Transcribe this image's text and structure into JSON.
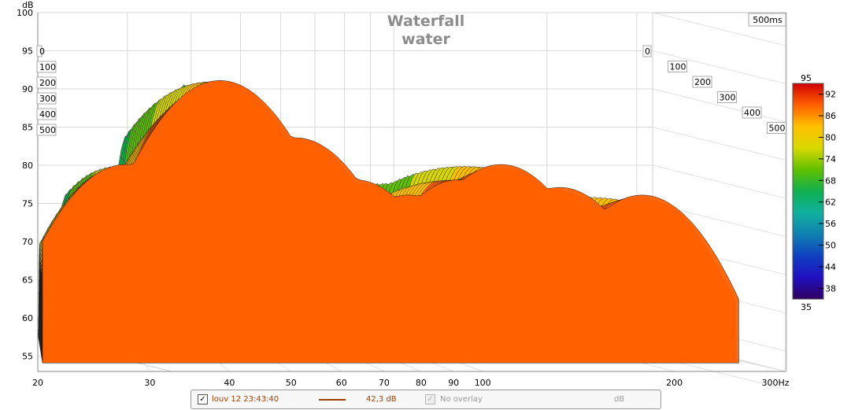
{
  "chart_data": {
    "type": "area",
    "title": "Waterfall",
    "subtitle": "water",
    "ylabel": "dB",
    "xlabel": "Hz",
    "x_ticks": [
      "20",
      "30",
      "40",
      "50",
      "60",
      "70",
      "80",
      "90",
      "100",
      "200",
      "300Hz"
    ],
    "x_tick_values": [
      20,
      30,
      40,
      50,
      60,
      70,
      80,
      90,
      100,
      200,
      300
    ],
    "y_ticks": [
      "100",
      "95",
      "90",
      "85",
      "80",
      "75",
      "70",
      "65",
      "60",
      "55"
    ],
    "y_tick_values": [
      100,
      95,
      90,
      85,
      80,
      75,
      70,
      65,
      60,
      55
    ],
    "xlim": [
      20,
      300
    ],
    "ylim": [
      53,
      100
    ],
    "x_scale": "log",
    "time_axis_label": "500ms",
    "time_ticks_left": [
      "0",
      "100",
      "200",
      "300",
      "400",
      "500"
    ],
    "time_ticks_right": [
      "0",
      "100",
      "200",
      "300",
      "400",
      "500"
    ],
    "time_range_ms": [
      0,
      500
    ],
    "grid": true,
    "colorbar": {
      "max_label": "95",
      "min_label": "35",
      "ticks": [
        "92",
        "86",
        "80",
        "74",
        "68",
        "62",
        "56",
        "50",
        "44",
        "38"
      ],
      "tick_values": [
        92,
        86,
        80,
        74,
        68,
        62,
        56,
        50,
        44,
        38
      ],
      "range": [
        35,
        95
      ]
    },
    "peaks": [
      {
        "x": 22,
        "y": 75
      },
      {
        "x": 27,
        "y": 84
      },
      {
        "x": 31,
        "y": 85
      },
      {
        "x": 38,
        "y": 95
      },
      {
        "x": 50,
        "y": 87.5
      },
      {
        "x": 62,
        "y": 82
      },
      {
        "x": 75,
        "y": 80
      },
      {
        "x": 90,
        "y": 82
      },
      {
        "x": 105,
        "y": 84
      },
      {
        "x": 130,
        "y": 81
      },
      {
        "x": 175,
        "y": 80
      }
    ]
  },
  "legend": {
    "item1_label": "louv 12 23:43:40",
    "item1_value": "42,3 dB",
    "item1_color": "#a04000",
    "item2_label": "No overlay",
    "item2_unit": "dB",
    "check_mark": "✓"
  }
}
